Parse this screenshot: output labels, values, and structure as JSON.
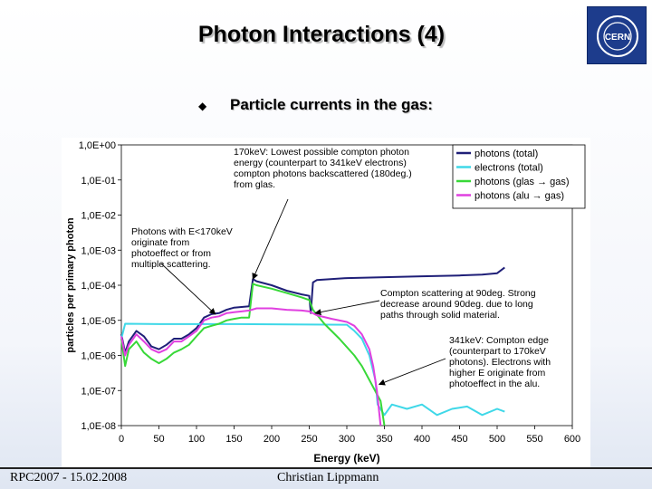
{
  "slide": {
    "title": "Photon Interactions (4)",
    "subtitle": "Particle currents in the gas:",
    "footer_left": "RPC2007 - 15.02.2008",
    "footer_center": "Christian Lippmann",
    "logo_text": "CERN"
  },
  "colors": {
    "photons_total": "#1f1f78",
    "electrons_total": "#3fd8e8",
    "photons_glas_gas": "#38d838",
    "photons_alu_gas": "#e040e0",
    "accent": "#1d3c8c"
  },
  "chart_data": {
    "type": "line",
    "xlabel": "Energy (keV)",
    "ylabel": "particles per primary photon",
    "xlim": [
      0,
      600
    ],
    "ylim": [
      1e-08,
      1
    ],
    "yscale": "log",
    "grid": false,
    "legend_position": "top-right",
    "x_ticks": [
      "0",
      "50",
      "100",
      "150",
      "200",
      "250",
      "300",
      "350",
      "400",
      "450",
      "500",
      "550",
      "600"
    ],
    "y_ticks": [
      "1,0E-08",
      "1,0E-07",
      "1,0E-06",
      "1,0E-05",
      "1,0E-04",
      "1,0E-03",
      "1,0E-02",
      "1,0E-01",
      "1,0E+00"
    ],
    "series": [
      {
        "name": "photons (total)",
        "color_key": "photons_total",
        "points": [
          [
            0,
            4e-06
          ],
          [
            5,
            1.2e-06
          ],
          [
            10,
            2.5e-06
          ],
          [
            20,
            5e-06
          ],
          [
            30,
            3.5e-06
          ],
          [
            40,
            1.8e-06
          ],
          [
            50,
            1.5e-06
          ],
          [
            60,
            2e-06
          ],
          [
            70,
            3e-06
          ],
          [
            80,
            3e-06
          ],
          [
            90,
            4e-06
          ],
          [
            100,
            6e-06
          ],
          [
            110,
            1.2e-05
          ],
          [
            120,
            1.5e-05
          ],
          [
            130,
            1.6e-05
          ],
          [
            140,
            2e-05
          ],
          [
            150,
            2.3e-05
          ],
          [
            160,
            2.4e-05
          ],
          [
            170,
            2.5e-05
          ],
          [
            175,
            0.00015
          ],
          [
            180,
            0.00013
          ],
          [
            200,
            0.0001
          ],
          [
            220,
            7e-05
          ],
          [
            240,
            5.5e-05
          ],
          [
            250,
            5e-05
          ],
          [
            252,
            1.6e-05
          ],
          [
            255,
            0.00012
          ],
          [
            260,
            0.00014
          ],
          [
            300,
            0.00016
          ],
          [
            350,
            0.00017
          ],
          [
            400,
            0.00018
          ],
          [
            450,
            0.00019
          ],
          [
            480,
            0.0002
          ],
          [
            500,
            0.00022
          ],
          [
            510,
            0.00032
          ]
        ]
      },
      {
        "name": "electrons (total)",
        "color_key": "electrons_total",
        "points": [
          [
            0,
            3e-06
          ],
          [
            5,
            8e-06
          ],
          [
            50,
            7.8e-06
          ],
          [
            100,
            7.8e-06
          ],
          [
            150,
            7.8e-06
          ],
          [
            200,
            7.7e-06
          ],
          [
            250,
            7.6e-06
          ],
          [
            300,
            7.5e-06
          ],
          [
            310,
            5e-06
          ],
          [
            320,
            3e-06
          ],
          [
            330,
            1e-06
          ],
          [
            338,
            2e-07
          ],
          [
            341,
            4e-08
          ],
          [
            350,
            2e-08
          ],
          [
            360,
            4e-08
          ],
          [
            380,
            3e-08
          ],
          [
            400,
            4e-08
          ],
          [
            420,
            2e-08
          ],
          [
            440,
            3e-08
          ],
          [
            460,
            3.5e-08
          ],
          [
            480,
            2e-08
          ],
          [
            500,
            3e-08
          ],
          [
            510,
            2.5e-08
          ]
        ]
      },
      {
        "name": "photons (glas → gas)",
        "color_key": "photons_glas_gas",
        "points": [
          [
            0,
            3e-06
          ],
          [
            5,
            5e-07
          ],
          [
            10,
            1.5e-06
          ],
          [
            20,
            2.5e-06
          ],
          [
            30,
            1.2e-06
          ],
          [
            40,
            8e-07
          ],
          [
            50,
            6e-07
          ],
          [
            60,
            8e-07
          ],
          [
            70,
            1.2e-06
          ],
          [
            80,
            1.5e-06
          ],
          [
            90,
            2e-06
          ],
          [
            100,
            3.5e-06
          ],
          [
            110,
            6e-06
          ],
          [
            120,
            7e-06
          ],
          [
            130,
            8e-06
          ],
          [
            140,
            1e-05
          ],
          [
            150,
            1.1e-05
          ],
          [
            160,
            1.2e-05
          ],
          [
            170,
            1.2e-05
          ],
          [
            175,
            0.00011
          ],
          [
            180,
            0.0001
          ],
          [
            200,
            8e-05
          ],
          [
            220,
            6e-05
          ],
          [
            240,
            4.5e-05
          ],
          [
            250,
            3.8e-05
          ],
          [
            255,
            2e-05
          ],
          [
            270,
            8e-06
          ],
          [
            290,
            3e-06
          ],
          [
            310,
            1e-06
          ],
          [
            320,
            5e-07
          ],
          [
            330,
            2e-07
          ],
          [
            345,
            5e-08
          ],
          [
            350,
            1e-08
          ]
        ]
      },
      {
        "name": "photons (alu → gas)",
        "color_key": "photons_alu_gas",
        "points": [
          [
            0,
            3.5e-06
          ],
          [
            5,
            1e-06
          ],
          [
            10,
            2e-06
          ],
          [
            20,
            4e-06
          ],
          [
            30,
            2.5e-06
          ],
          [
            40,
            1.5e-06
          ],
          [
            50,
            1.2e-06
          ],
          [
            60,
            1.5e-06
          ],
          [
            70,
            2.5e-06
          ],
          [
            80,
            2.5e-06
          ],
          [
            90,
            3.5e-06
          ],
          [
            100,
            5e-06
          ],
          [
            110,
            1e-05
          ],
          [
            120,
            1.2e-05
          ],
          [
            130,
            1.3e-05
          ],
          [
            140,
            1.6e-05
          ],
          [
            150,
            1.7e-05
          ],
          [
            160,
            1.8e-05
          ],
          [
            170,
            1.9e-05
          ],
          [
            180,
            2.2e-05
          ],
          [
            200,
            2.2e-05
          ],
          [
            220,
            2e-05
          ],
          [
            240,
            1.9e-05
          ],
          [
            250,
            1.8e-05
          ],
          [
            260,
            1.4e-05
          ],
          [
            280,
            1.1e-05
          ],
          [
            300,
            9e-06
          ],
          [
            310,
            7e-06
          ],
          [
            320,
            4e-06
          ],
          [
            330,
            1.5e-06
          ],
          [
            335,
            5e-07
          ],
          [
            340,
            1e-07
          ],
          [
            345,
            1e-08
          ]
        ]
      }
    ],
    "annotations": [
      {
        "lines": [
          "170keV: Lowest possible compton photon",
          "energy (counterpart to 341keV electrons)",
          "compton photons backscattered (180deg.)",
          "from glas."
        ],
        "arrow_to": [
          175,
          0.00015
        ]
      },
      {
        "lines": [
          "Photons with E<170keV",
          "originate from",
          "photoeffect or from",
          "multiple scattering."
        ],
        "arrow_to": [
          125,
          1.5e-05
        ]
      },
      {
        "lines": [
          "Compton scattering at 90deg. Strong",
          "decrease around 90deg. due to long",
          "paths through solid material."
        ],
        "arrow_to": [
          258,
          1.6e-05
        ]
      },
      {
        "lines": [
          "341keV: Compton edge",
          "(counterpart to 170keV",
          "photons). Electrons with",
          "higher E originate from",
          "photoeffect in the alu."
        ],
        "arrow_to": [
          343,
          1.5e-07
        ]
      }
    ]
  }
}
